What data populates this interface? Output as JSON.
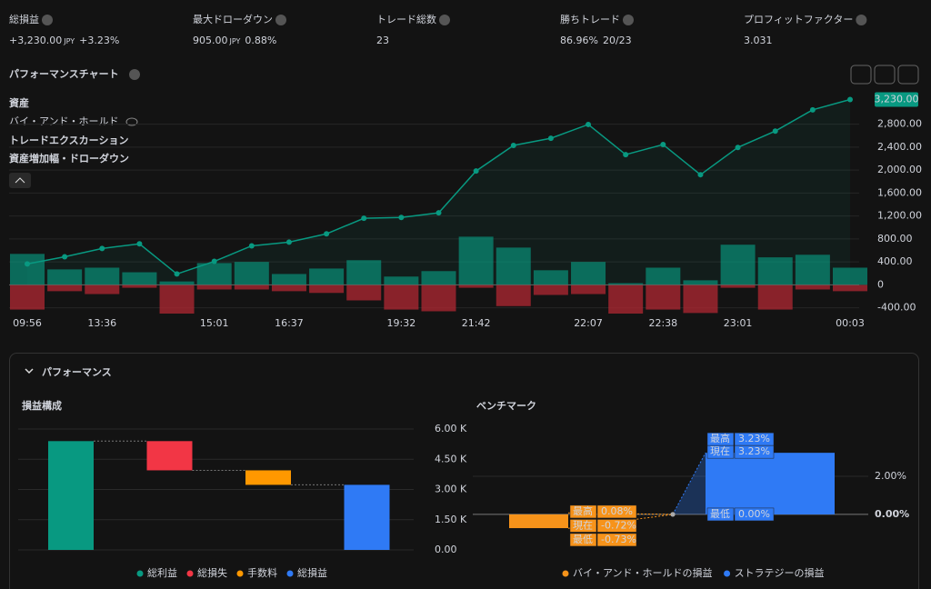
{
  "stats": [
    {
      "label": "総損益",
      "value": "+3,230.00",
      "unit": "JPY",
      "extra": "+3.23%",
      "color": "#22ab94"
    },
    {
      "label": "最大ドローダウン",
      "value": "905.00",
      "unit": "JPY",
      "extra": "0.88%"
    },
    {
      "label": "トレード総数",
      "value": "23"
    },
    {
      "label": "勝ちトレード",
      "value": "86.96%",
      "extra": "20/23"
    },
    {
      "label": "プロフィットファクター",
      "value": "3.031"
    }
  ],
  "performance_chart": {
    "title": "パフォーマンスチャート",
    "hidden_legend": "バイ・アンド・ホールド",
    "extra_legend": "資産増加幅・ドローダウン",
    "type": "line",
    "categories": [
      "09:56",
      null,
      "13:36",
      null,
      null,
      "15:01",
      null,
      "16:37",
      null,
      null,
      "19:32",
      null,
      "21:42",
      null,
      null,
      "22:07",
      null,
      "22:38",
      null,
      "23:01",
      null,
      null,
      "00:03"
    ],
    "series": [
      {
        "name": "資産",
        "color": "#089981",
        "values": [
          365,
          490,
          635,
          715,
          190,
          410,
          680,
          745,
          890,
          1160,
          1175,
          1255,
          1985,
          2430,
          2555,
          2795,
          2270,
          2445,
          1920,
          2395,
          2680,
          3050,
          3230
        ],
        "last_label": "3,230.00"
      },
      {
        "name": "トレードエクスカーション",
        "color": "#089981",
        "values": [
          540,
          270,
          300,
          220,
          60,
          380,
          400,
          190,
          285,
          430,
          145,
          240,
          840,
          650,
          255,
          400,
          30,
          300,
          80,
          700,
          480,
          525,
          300
        ],
        "drawdown_color": "#b22833",
        "drawdown_values": [
          -430,
          -110,
          -160,
          -50,
          -500,
          -80,
          -80,
          -110,
          -140,
          -270,
          -430,
          -460,
          -50,
          -370,
          -175,
          -160,
          -500,
          -430,
          -490,
          -50,
          -430,
          -80,
          -110
        ]
      }
    ],
    "ylim": [
      -500,
      3380
    ],
    "yticks": [
      {
        "value": -400,
        "label": "-400.00"
      },
      0,
      {
        "value": 400,
        "label": "400.00"
      },
      {
        "value": 800,
        "label": "800.00"
      },
      {
        "value": 1200,
        "label": "1,200.00"
      },
      {
        "value": 1600,
        "label": "1,600.00"
      },
      {
        "value": 2000,
        "label": "2,000.00"
      },
      {
        "value": 2400,
        "label": "2,400.00"
      },
      {
        "value": 2800,
        "label": "2,800.00"
      }
    ],
    "grid": true
  },
  "performance": {
    "title": "パフォーマンス",
    "pnl": {
      "type": "waterfall",
      "title": "損益構成",
      "categories": [
        "総利益",
        "総損失",
        "手数料",
        "総損益"
      ],
      "values": [
        5400,
        -1450,
        -720,
        3230
      ],
      "colors": [
        "#089981",
        "#f23645",
        "#ff9800",
        "#2f7af5"
      ],
      "ylim": [
        0,
        6000
      ],
      "yticks": [
        {
          "value": 0,
          "label": "0.00"
        },
        {
          "value": 1500,
          "label": "1.50 K"
        },
        {
          "value": 3000,
          "label": "3.00 K"
        },
        {
          "value": 4500,
          "label": "4.50 K"
        },
        {
          "value": 6000,
          "label": "6.00 K"
        }
      ],
      "grid": true
    },
    "benchmark": {
      "type": "range",
      "title": "ベンチマーク",
      "stat_names": [
        "最高",
        "現在",
        "最低"
      ],
      "series": [
        {
          "name": "バイ・アンド・ホールドの損益",
          "color": "#f7931a",
          "values": [
            0.08,
            -0.72,
            -0.73
          ],
          "value_labels": [
            "0.08%",
            "-0.72%",
            "-0.73%"
          ]
        },
        {
          "name": "ストラテジーの損益",
          "color": "#2f7af5",
          "values": [
            3.23,
            3.23,
            0.0
          ],
          "value_labels": [
            "3.23%",
            "3.23%",
            "0.00%"
          ]
        }
      ],
      "ylim": [
        -2.1,
        4.3
      ],
      "yticks": [
        {
          "value": 0,
          "label": "0.00%"
        },
        {
          "value": 2,
          "label": "2.00%"
        }
      ]
    }
  }
}
